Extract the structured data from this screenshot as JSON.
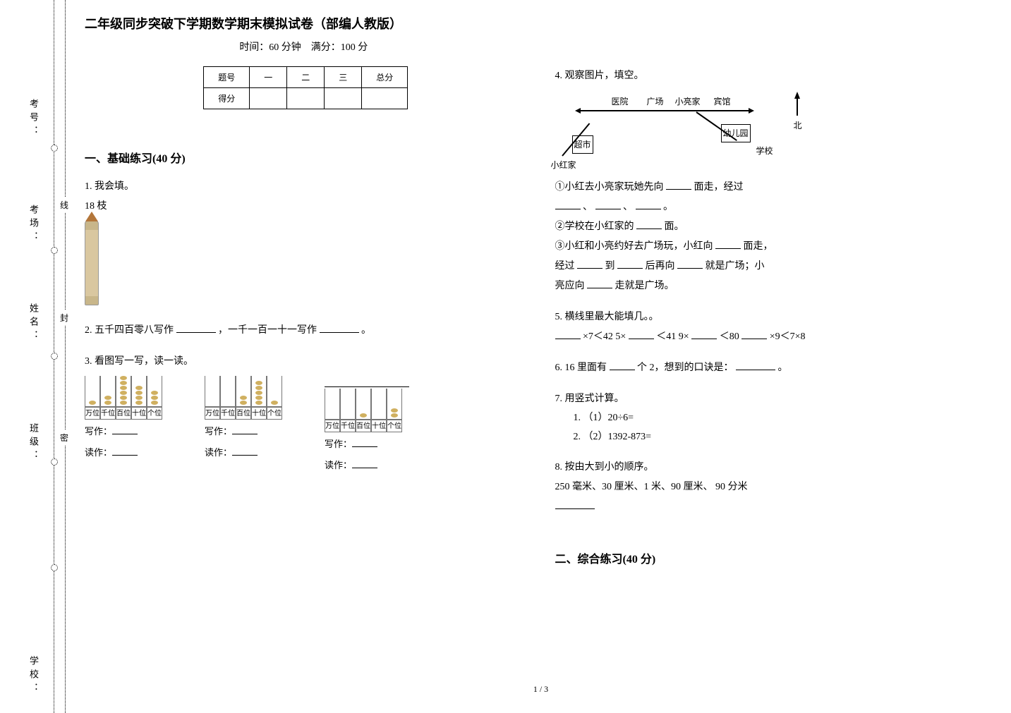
{
  "binding_labels": {
    "kao_hao": "考号：",
    "kao_chang": "考场：",
    "xing_ming": "姓名：",
    "ban_ji": "班级：",
    "xue_xiao": "学校：",
    "xian": "线",
    "feng": "封",
    "mi": "密"
  },
  "title": "二年级同步突破下学期数学期末模拟试卷（部编人教版）",
  "subtitle": "时间：60 分钟　满分：100 分",
  "score_table": {
    "header": [
      "题号",
      "一",
      "二",
      "三",
      "总分"
    ],
    "row_label": "得分"
  },
  "sections": {
    "one": "一、基础练习(40 分)",
    "two": "二、综合练习(40 分)"
  },
  "q1": {
    "stem": "1. 我会填。",
    "line": "18 枝"
  },
  "q2": {
    "stem1": "2. 五千四百零八写作",
    "stem2": " ，一千一百一十一写作",
    "stem3": " 。"
  },
  "q3": {
    "stem": "3. 看图写一写，读一读。",
    "places": [
      "万位",
      "千位",
      "百位",
      "十位",
      "个位"
    ],
    "beads": [
      [
        1,
        2,
        6,
        4,
        3
      ],
      [
        0,
        0,
        2,
        5,
        1
      ],
      [
        0,
        0,
        1,
        0,
        2
      ]
    ],
    "write_label": "写作：",
    "read_label": "读作："
  },
  "q4": {
    "stem": "4. 观察图片，填空。",
    "map_labels": {
      "hospital": "医院",
      "plaza": "广场",
      "liang_home": "小亮家",
      "hotel": "宾馆",
      "kinder": "幼儿园",
      "super": "超市",
      "school": "学校",
      "hong_home": "小红家",
      "north": "北"
    },
    "sub1a": "①小红去小亮家玩她先向",
    "sub1b": "面走，经过",
    "sub1c": "、",
    "sub1d": "、",
    "sub1e": "。",
    "sub2a": "②学校在小红家的",
    "sub2b": "面。",
    "sub3a": "③小红和小亮约好去广场玩，小红向",
    "sub3b": "面走，",
    "sub3c": "经过",
    "sub3d": "到",
    "sub3e": "后再向",
    "sub3f": "就是广场；小",
    "sub3g": "亮应向",
    "sub3h": "走就是广场。"
  },
  "q5": {
    "stem": "5. 横线里最大能填几。。",
    "e1a": "×7＜42 5×",
    "e1b": "＜41 9×",
    "e1c": "＜80 ",
    "e1d": "×9＜7×8"
  },
  "q6": {
    "a": "6. 16 里面有",
    "b": "个 2，想到的口诀是：",
    "c": "。"
  },
  "q7": {
    "stem": "7. 用竖式计算。",
    "items": [
      "（1）20÷6=",
      "（2）1392-873="
    ]
  },
  "q8": {
    "stem": "8. 按由大到小的顺序。",
    "list": "250 毫米、30 厘米、1 米、90 厘米、 90 分米"
  },
  "footer": "1 / 3",
  "colors": {
    "text": "#000000",
    "background": "#ffffff",
    "bead": "#d0b060",
    "pencil_body": "#d9c7a0",
    "pencil_tip": "#b3763a",
    "border": "#777777"
  },
  "fonts": {
    "body_pt": 14,
    "title_pt": 18,
    "section_pt": 16,
    "small_pt": 12
  }
}
